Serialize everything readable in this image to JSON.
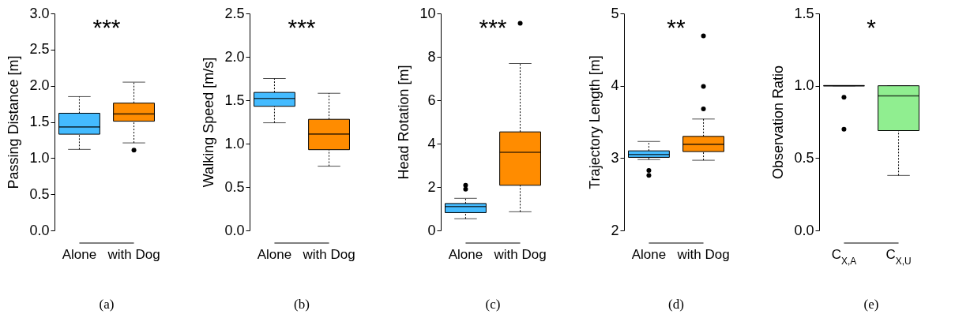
{
  "chart_data": [
    {
      "type": "box",
      "title": "(a)",
      "ylabel": "Passing Distance [m]",
      "categories": [
        "Alone",
        "with Dog"
      ],
      "colors": [
        "#44bbff",
        "#ff8c00"
      ],
      "ylim": [
        0,
        3
      ],
      "yticks": [
        {
          "value": 0,
          "label": "0.0"
        },
        0.5,
        {
          "value": 1,
          "label": "1.0"
        },
        1.5,
        {
          "value": 2,
          "label": "2.0"
        },
        2.5,
        {
          "value": 3,
          "label": "3.0"
        }
      ],
      "annotations": [
        "***"
      ],
      "boxes": [
        {
          "low": 1.12,
          "q1": 1.33,
          "median": 1.43,
          "q3": 1.62,
          "high": 1.85
        },
        {
          "low": 1.21,
          "q1": 1.51,
          "median": 1.61,
          "q3": 1.76,
          "high": 2.05,
          "outliers": [
            1.11
          ]
        }
      ]
    },
    {
      "type": "box",
      "title": "(b)",
      "ylabel": "Walking Speed [m/s]",
      "categories": [
        "Alone",
        "with Dog"
      ],
      "colors": [
        "#44bbff",
        "#ff8c00"
      ],
      "ylim": [
        0,
        2.5
      ],
      "yticks": [
        {
          "value": 0,
          "label": "0.0"
        },
        0.5,
        {
          "value": 1,
          "label": "1.0"
        },
        1.5,
        {
          "value": 2,
          "label": "2.0"
        },
        2.5
      ],
      "annotations": [
        "***"
      ],
      "boxes": [
        {
          "low": 1.24,
          "q1": 1.43,
          "median": 1.52,
          "q3": 1.59,
          "high": 1.75
        },
        {
          "low": 0.74,
          "q1": 0.93,
          "median": 1.11,
          "q3": 1.28,
          "high": 1.58
        }
      ]
    },
    {
      "type": "box",
      "title": "(c)",
      "ylabel": "Head Rotation [m]",
      "categories": [
        "Alone",
        "with Dog"
      ],
      "colors": [
        "#44bbff",
        "#ff8c00"
      ],
      "ylim": [
        0,
        10
      ],
      "yticks": [
        0,
        2,
        4,
        6,
        8,
        10
      ],
      "annotations": [
        "***"
      ],
      "boxes": [
        {
          "low": 0.54,
          "q1": 0.82,
          "median": 1.1,
          "q3": 1.24,
          "high": 1.48,
          "outliers": [
            1.9,
            2.08
          ]
        },
        {
          "low": 0.86,
          "q1": 2.08,
          "median": 3.6,
          "q3": 4.54,
          "high": 7.69,
          "outliers": [
            9.55
          ]
        }
      ]
    },
    {
      "type": "box",
      "title": "(d)",
      "ylabel": "Trajectory Length [m]",
      "categories": [
        "Alone",
        "with Dog"
      ],
      "colors": [
        "#44bbff",
        "#ff8c00"
      ],
      "ylim": [
        2,
        5
      ],
      "yticks": [
        2,
        3,
        4,
        5
      ],
      "annotations": [
        "**"
      ],
      "boxes": [
        {
          "low": 2.98,
          "q1": 3.01,
          "median": 3.05,
          "q3": 3.1,
          "high": 3.23,
          "outliers": [
            2.76,
            2.83
          ]
        },
        {
          "low": 2.97,
          "q1": 3.09,
          "median": 3.19,
          "q3": 3.3,
          "high": 3.54,
          "outliers": [
            3.68,
            3.99,
            4.69
          ]
        }
      ]
    },
    {
      "type": "box",
      "title": "(e)",
      "ylabel": "Observation Ratio",
      "categories": [
        "C$_{X,A}$",
        "C$_{X,U}$"
      ],
      "colors": [
        "#000000",
        "#90ee90"
      ],
      "ylim": [
        0,
        1.5
      ],
      "yticks": [
        {
          "value": 0,
          "label": "0.0"
        },
        0.5,
        {
          "value": 1,
          "label": "1.0"
        },
        1.5
      ],
      "annotations": [
        "*"
      ],
      "boxes": [
        {
          "low": 1,
          "q1": 1,
          "median": 1,
          "q3": 1,
          "high": 1,
          "outliers": [
            0.7,
            0.92
          ]
        },
        {
          "low": 0.38,
          "q1": 0.69,
          "median": 0.93,
          "q3": 1,
          "high": 1
        }
      ]
    }
  ]
}
